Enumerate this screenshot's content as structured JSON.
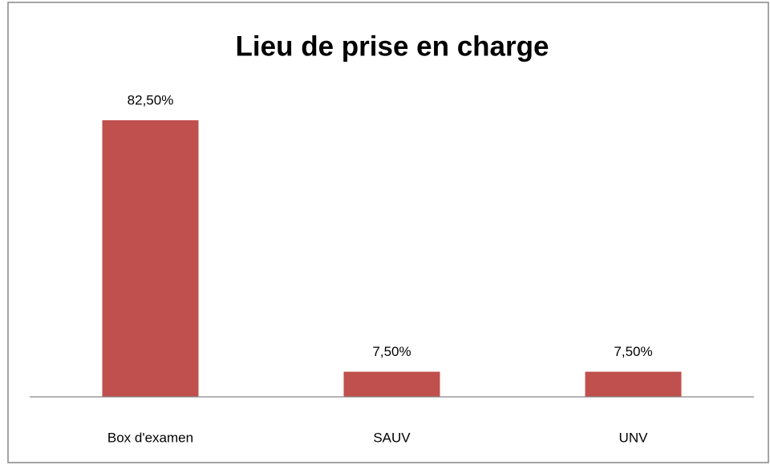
{
  "chart_data": {
    "type": "bar",
    "title": "Lieu de prise en charge",
    "categories": [
      "Box d'examen",
      "SAUV",
      "UNV"
    ],
    "values": [
      82.5,
      7.5,
      7.5
    ],
    "value_labels": [
      "82,50%",
      "7,50%",
      "7,50%"
    ],
    "color": "#c0504d"
  }
}
